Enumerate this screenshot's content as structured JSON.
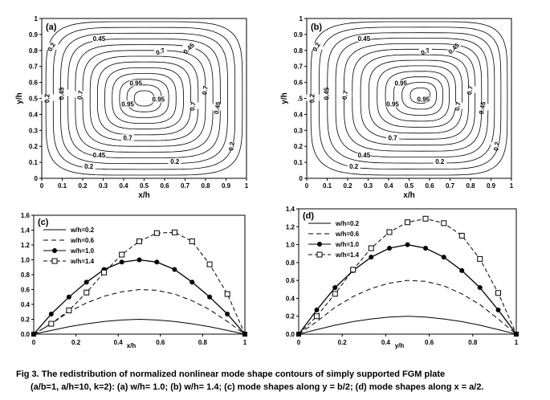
{
  "panels": {
    "a": {
      "label": "(a)",
      "xlabel": "x/h",
      "ylabel": "y/h",
      "xticks": [
        "0",
        "0.1",
        "0.2",
        "0.3",
        "0.4",
        "0.5",
        "0.6",
        "0.7",
        "0.8",
        "0.9",
        "1"
      ],
      "yticks": [
        "0",
        "0.1",
        "0.2",
        "0.3",
        "0.4",
        "0.5",
        "0.6",
        "0.7",
        "0.8",
        "0.9",
        "1"
      ],
      "contour_labels": [
        "0.2",
        "0.45",
        "0.7",
        "0.95",
        "0.95",
        "0.7",
        "0.45",
        "0.2",
        "0.45",
        "0.7",
        "0.95",
        "0.7",
        "0.2",
        "0.45",
        "0.2",
        "0.7",
        "0.45",
        "0.2"
      ]
    },
    "b": {
      "label": "(b)",
      "xlabel": "x/h",
      "ylabel": "y/h",
      "xticks": [
        "0",
        "0.1",
        "0.2",
        "0.3",
        "0.4",
        "0.5",
        "0.6",
        "0.7",
        "0.8",
        "0.9",
        "1"
      ],
      "yticks": [
        "0",
        "0.1",
        "0.2",
        "0.3",
        "0.4",
        ".5",
        "0.6",
        "0.7",
        "0.8",
        "0.9",
        "1"
      ],
      "contour_labels": [
        "0.2",
        "0.45",
        "0.7",
        "0.95",
        "0.95",
        "0.7",
        "0.45",
        "0.2",
        "0.45",
        "0.7",
        "0.95",
        "0.7",
        "0.2",
        "0.45",
        "0.2",
        "0.7",
        "0.45",
        "0.2"
      ]
    },
    "c": {
      "label": "(c)",
      "xlabel": "x/h",
      "xticks": [
        "0",
        "0.2",
        "0.4",
        "0.6",
        "0.8",
        "1"
      ],
      "yticks": [
        "0.0",
        "0.2",
        "0.4",
        "0.6",
        "0.8",
        "1.0",
        "1.2",
        "1.4",
        "1.6"
      ]
    },
    "d": {
      "label": "(d)",
      "xlabel": "y/h",
      "xticks": [
        "0",
        "0.2",
        "0.4",
        "0.6",
        "0.8",
        "1"
      ],
      "yticks": [
        "0.0",
        "0.2",
        "0.4",
        "0.6",
        "0.8",
        "1.0",
        "1.2",
        "1.4"
      ]
    }
  },
  "legend": [
    "w/h=0.2",
    "w/h=0.6",
    "w/h=1.0",
    "w/h=1.4"
  ],
  "caption": {
    "line1": "Fig 3. The redistribution of normalized nonlinear mode shape contours of simply supported FGM plate",
    "line2": "(a/b=1, a/h=10, k=2): (a) w/h= 1.0; (b) w/h= 1.4; (c) mode shapes along y = b/2; (d) mode shapes along x = a/2."
  },
  "chart_data": [
    {
      "type": "line",
      "panel": "c",
      "xlabel": "x/h",
      "ylim": [
        0,
        1.6
      ],
      "xlim": [
        0,
        1
      ],
      "series": [
        {
          "name": "w/h=0.2",
          "x": [
            0,
            0.083,
            0.167,
            0.25,
            0.333,
            0.417,
            0.5,
            0.583,
            0.667,
            0.75,
            0.833,
            0.917,
            1
          ],
          "y": [
            0,
            0.05,
            0.1,
            0.14,
            0.17,
            0.19,
            0.2,
            0.19,
            0.17,
            0.14,
            0.1,
            0.05,
            0
          ]
        },
        {
          "name": "w/h=0.6",
          "x": [
            0,
            0.083,
            0.167,
            0.25,
            0.333,
            0.417,
            0.5,
            0.583,
            0.667,
            0.75,
            0.833,
            0.917,
            1
          ],
          "y": [
            0,
            0.14,
            0.3,
            0.42,
            0.51,
            0.57,
            0.6,
            0.59,
            0.54,
            0.45,
            0.33,
            0.17,
            0
          ]
        },
        {
          "name": "w/h=1.0",
          "x": [
            0,
            0.083,
            0.167,
            0.25,
            0.333,
            0.417,
            0.5,
            0.583,
            0.667,
            0.75,
            0.833,
            0.917,
            1
          ],
          "y": [
            0,
            0.27,
            0.5,
            0.7,
            0.87,
            0.97,
            1.0,
            0.97,
            0.87,
            0.7,
            0.5,
            0.27,
            0
          ]
        },
        {
          "name": "w/h=1.4",
          "x": [
            0,
            0.083,
            0.167,
            0.25,
            0.333,
            0.417,
            0.5,
            0.583,
            0.667,
            0.75,
            0.833,
            0.917,
            1
          ],
          "y": [
            0,
            0.14,
            0.32,
            0.56,
            0.83,
            1.07,
            1.25,
            1.36,
            1.37,
            1.25,
            0.94,
            0.54,
            0
          ]
        }
      ]
    },
    {
      "type": "line",
      "panel": "d",
      "xlabel": "y/h",
      "ylim": [
        0,
        1.4
      ],
      "xlim": [
        0,
        1
      ],
      "series": [
        {
          "name": "w/h=0.2",
          "x": [
            0,
            0.083,
            0.167,
            0.25,
            0.333,
            0.417,
            0.5,
            0.583,
            0.667,
            0.75,
            0.833,
            0.917,
            1
          ],
          "y": [
            0,
            0.05,
            0.1,
            0.14,
            0.17,
            0.19,
            0.2,
            0.19,
            0.17,
            0.14,
            0.1,
            0.05,
            0
          ]
        },
        {
          "name": "w/h=0.6",
          "x": [
            0,
            0.083,
            0.167,
            0.25,
            0.333,
            0.417,
            0.5,
            0.583,
            0.667,
            0.75,
            0.833,
            0.917,
            1
          ],
          "y": [
            0,
            0.14,
            0.3,
            0.42,
            0.51,
            0.57,
            0.6,
            0.59,
            0.54,
            0.45,
            0.33,
            0.17,
            0
          ]
        },
        {
          "name": "w/h=1.0",
          "x": [
            0,
            0.083,
            0.167,
            0.25,
            0.333,
            0.417,
            0.5,
            0.583,
            0.667,
            0.75,
            0.833,
            0.917,
            1
          ],
          "y": [
            0,
            0.27,
            0.52,
            0.71,
            0.86,
            0.96,
            1.0,
            0.96,
            0.86,
            0.71,
            0.52,
            0.27,
            0
          ]
        },
        {
          "name": "w/h=1.4",
          "x": [
            0,
            0.083,
            0.167,
            0.25,
            0.333,
            0.417,
            0.5,
            0.583,
            0.667,
            0.75,
            0.833,
            0.917,
            1
          ],
          "y": [
            0,
            0.2,
            0.45,
            0.72,
            0.96,
            1.14,
            1.25,
            1.29,
            1.24,
            1.1,
            0.84,
            0.46,
            0
          ]
        }
      ]
    }
  ]
}
